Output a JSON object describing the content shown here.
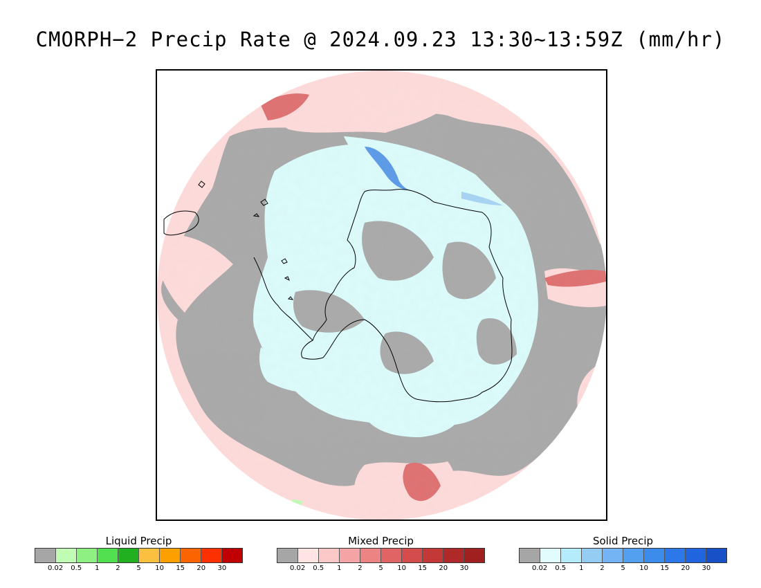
{
  "title": "CMORPH−2 Precip Rate @ 2024.09.23 13:30~13:59Z (mm/hr)",
  "map": {
    "projection": "south-polar-stereographic",
    "colors": {
      "no_precip": "#a9a9a9",
      "mixed_light": "#ffdcdc",
      "mixed_med": "#f4a4a4",
      "mixed_heavy": "#e07070",
      "solid_light": "#dcfcfc",
      "solid_med": "#a6d4f4",
      "solid_heavy": "#5a9ae8",
      "liquid_light": "#c0fcb4",
      "coastline": "#000000"
    }
  },
  "legends": [
    {
      "title": "Liquid Precip",
      "ticks": [
        "0.02",
        "0.5",
        "1",
        "2",
        "5",
        "10",
        "15",
        "20",
        "30"
      ],
      "colors": [
        "#a6a6a6",
        "#c0fcb4",
        "#8ef082",
        "#50e050",
        "#20b020",
        "#fcc040",
        "#fca000",
        "#fc6400",
        "#fc3000",
        "#c00000"
      ]
    },
    {
      "title": "Mixed Precip",
      "ticks": [
        "0.02",
        "0.5",
        "1",
        "2",
        "5",
        "10",
        "15",
        "20",
        "30"
      ],
      "colors": [
        "#a6a6a6",
        "#ffe4e4",
        "#fcc8c8",
        "#f4a4a4",
        "#ec8484",
        "#e06464",
        "#d44c4c",
        "#c43838",
        "#b02828",
        "#a02020"
      ]
    },
    {
      "title": "Solid Precip",
      "ticks": [
        "0.02",
        "0.5",
        "1",
        "2",
        "5",
        "10",
        "15",
        "20",
        "30"
      ],
      "colors": [
        "#a6a6a6",
        "#e0fcfc",
        "#b4ecfc",
        "#94ccf4",
        "#74b4f4",
        "#54a0f0",
        "#3c8cec",
        "#2c78e8",
        "#2064e0",
        "#1850c8"
      ]
    }
  ]
}
